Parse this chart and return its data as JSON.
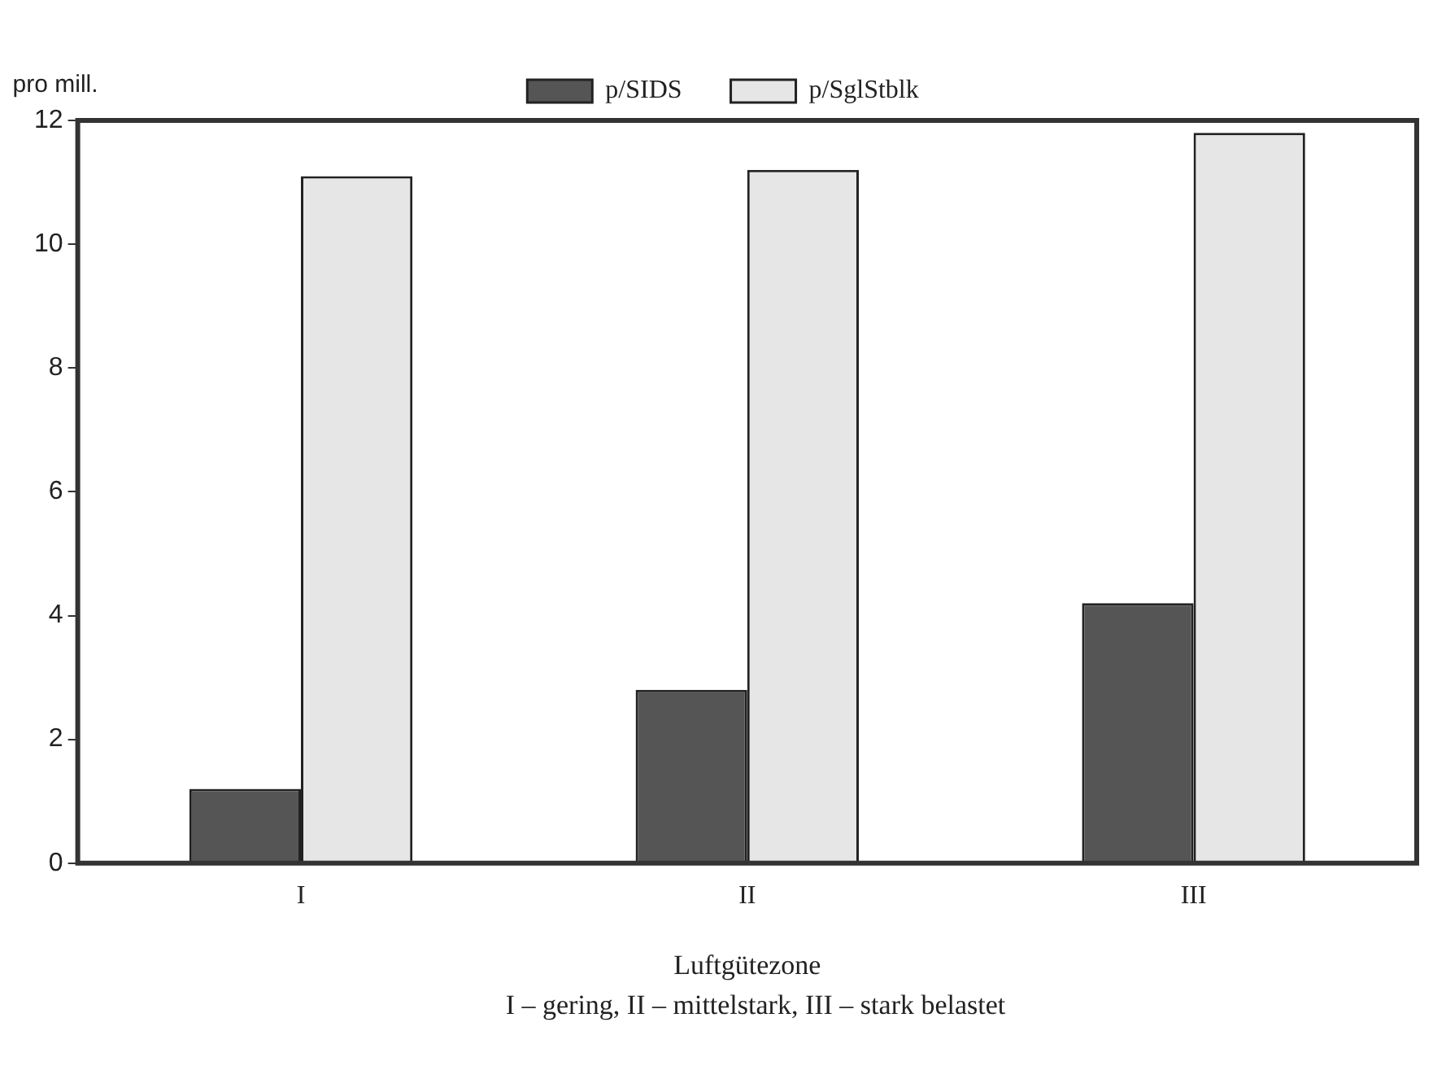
{
  "chart_data": {
    "type": "bar",
    "categories": [
      "I",
      "II",
      "III"
    ],
    "series": [
      {
        "name": "p/SIDS",
        "color": "#555555",
        "values": [
          1.2,
          2.8,
          4.2
        ]
      },
      {
        "name": "p/SglStblk",
        "color": "#e6e6e6",
        "values": [
          11.1,
          11.2,
          11.8
        ]
      }
    ],
    "ylabel": "pro mill.",
    "xlabel": "Luftgütezone",
    "annotations": [
      "I – gering, II – mittelstark, III – stark belastet"
    ],
    "ylim": [
      0,
      12
    ],
    "yticks": [
      0,
      2,
      4,
      6,
      8,
      10,
      12
    ],
    "grid": false,
    "legend": "top"
  }
}
